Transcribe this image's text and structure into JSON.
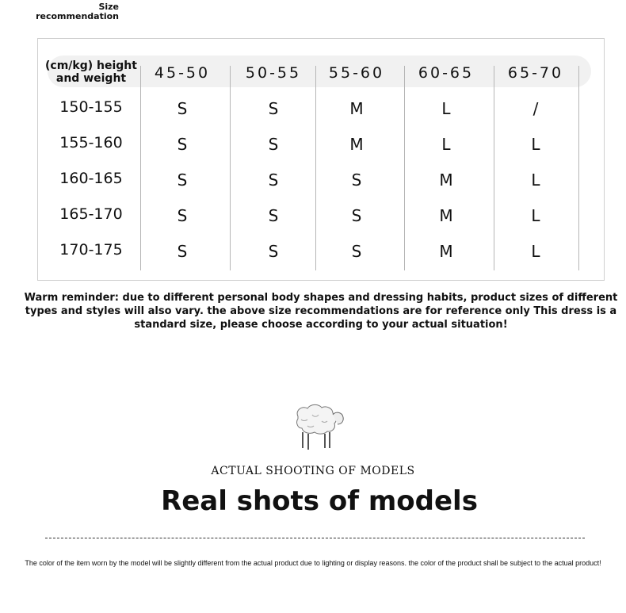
{
  "size_recommendation_label": "Size recommendation",
  "table": {
    "corner_label": "(cm/kg) height and weight",
    "columns": [
      "45-50",
      "50-55",
      "55-60",
      "60-65",
      "65-70"
    ],
    "rows": [
      {
        "label": "150-155",
        "sizes": [
          "S",
          "S",
          "M",
          "L",
          "/"
        ]
      },
      {
        "label": "155-160",
        "sizes": [
          "S",
          "S",
          "M",
          "L",
          "L"
        ]
      },
      {
        "label": "160-165",
        "sizes": [
          "S",
          "S",
          "S",
          "M",
          "L"
        ]
      },
      {
        "label": "165-170",
        "sizes": [
          "S",
          "S",
          "S",
          "M",
          "L"
        ]
      },
      {
        "label": "170-175",
        "sizes": [
          "S",
          "S",
          "S",
          "M",
          "L"
        ]
      }
    ]
  },
  "warm_reminder": "Warm reminder: due to different personal body shapes and dressing habits, product sizes of different types and styles will also vary. the above size recommendations are for reference only This dress is a standard size, please choose according to your actual situation!",
  "section": {
    "icon": "sheep-icon",
    "subtitle": "ACTUAL SHOOTING OF MODELS",
    "title": "Real shots of models"
  },
  "color_note": "The color of the item worn by the model will be slightly different from the actual product due to lighting or display reasons. the color of the product shall be subject to the actual product!"
}
